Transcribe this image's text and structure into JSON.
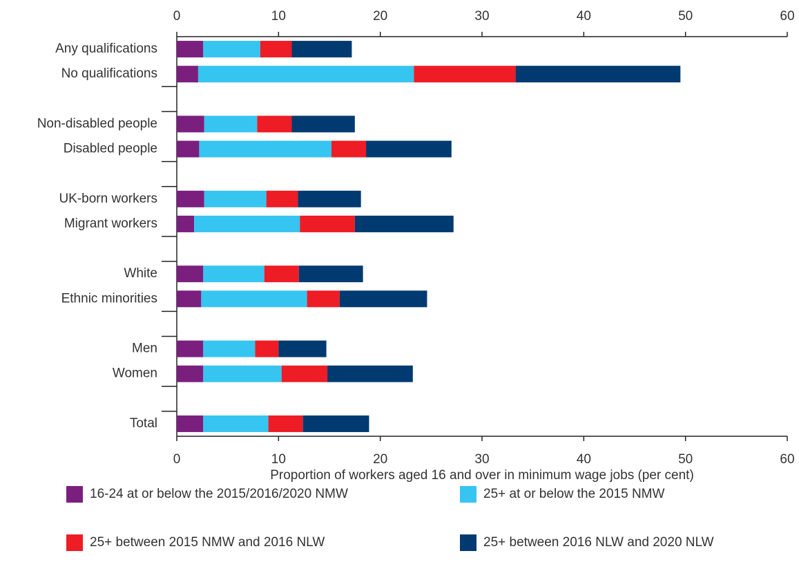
{
  "chart_data": {
    "type": "stacked-barh",
    "x_label": "Proportion of workers aged 16 and over in minimum wage jobs (per cent)",
    "categories": [
      "Any qualifications",
      "No qualifications",
      null,
      "Non-disabled people",
      "Disabled people",
      null,
      "UK-born workers",
      "Migrant workers",
      null,
      "White",
      "Ethnic minorities",
      null,
      "Men",
      "Women",
      null,
      "Total"
    ],
    "series": [
      {
        "name": "16-24 at or below the 2015/2016/2020 NMW",
        "color": "#7b1f7f",
        "values": [
          2.6,
          2.1,
          null,
          2.7,
          2.2,
          null,
          2.7,
          1.7,
          null,
          2.6,
          2.4,
          null,
          2.6,
          2.6,
          null,
          2.6
        ]
      },
      {
        "name": "25+ at or below the 2015 NMW",
        "color": "#36c5f0",
        "values": [
          5.6,
          21.2,
          null,
          5.2,
          13.0,
          null,
          6.1,
          10.4,
          null,
          6.0,
          10.4,
          null,
          5.1,
          7.7,
          null,
          6.4
        ]
      },
      {
        "name": "25+ between 2015 NMW and 2016 NLW",
        "color": "#ee1c25",
        "values": [
          3.1,
          10.0,
          null,
          3.4,
          3.4,
          null,
          3.1,
          5.4,
          null,
          3.4,
          3.2,
          null,
          2.3,
          4.5,
          null,
          3.4
        ]
      },
      {
        "name": "25+ between 2016 NLW and 2020 NLW",
        "color": "#003a70",
        "values": [
          5.9,
          16.2,
          null,
          6.2,
          8.4,
          null,
          6.2,
          9.7,
          null,
          6.3,
          8.6,
          null,
          4.7,
          8.4,
          null,
          6.5
        ]
      }
    ],
    "xlim": [
      0,
      60
    ],
    "xticks": [
      0,
      10,
      20,
      30,
      40,
      50,
      60
    ]
  }
}
